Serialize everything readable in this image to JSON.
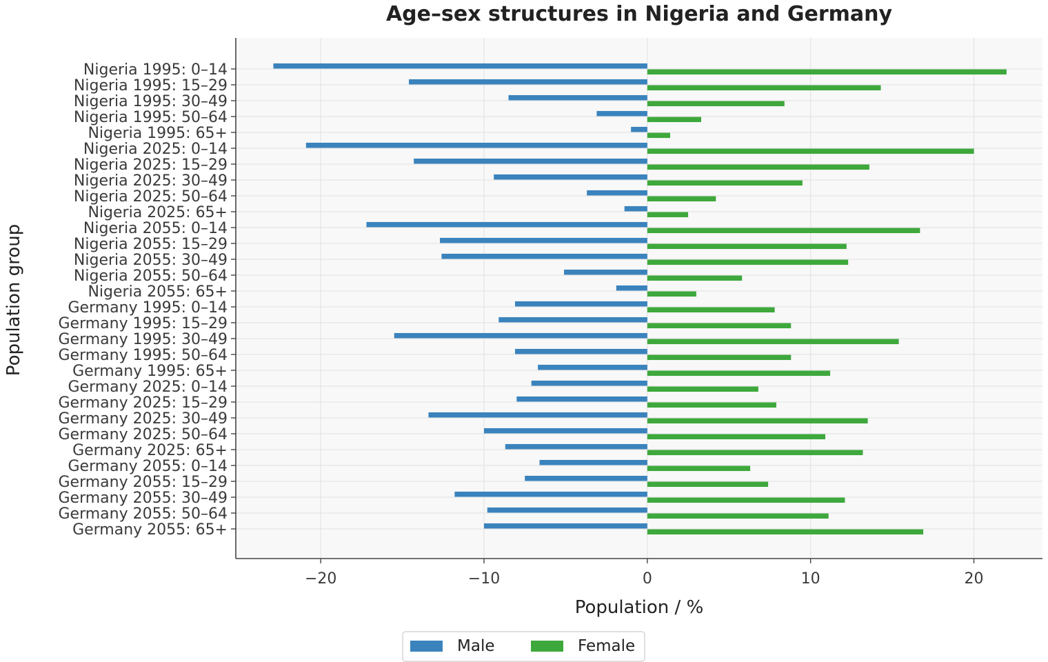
{
  "chart_data": {
    "type": "bar",
    "orientation": "horizontal",
    "title": "Age–sex structures in Nigeria and Germany",
    "xlabel": "Population / %",
    "ylabel": "Population group",
    "xlim": [
      -25.2,
      24.2
    ],
    "xticks": [
      -20,
      -10,
      0,
      10,
      20
    ],
    "xtick_labels": [
      "−20",
      "−10",
      "0",
      "10",
      "20"
    ],
    "grid": true,
    "legend_position": "bottom-center",
    "categories": [
      "Nigeria 1995: 0–14",
      "Nigeria 1995: 15–29",
      "Nigeria 1995: 30–49",
      "Nigeria 1995: 50–64",
      "Nigeria 1995: 65+",
      "Nigeria 2025: 0–14",
      "Nigeria 2025: 15–29",
      "Nigeria 2025: 30–49",
      "Nigeria 2025: 50–64",
      "Nigeria 2025: 65+",
      "Nigeria 2055: 0–14",
      "Nigeria 2055: 15–29",
      "Nigeria 2055: 30–49",
      "Nigeria 2055: 50–64",
      "Nigeria 2055: 65+",
      "Germany 1995: 0–14",
      "Germany 1995: 15–29",
      "Germany 1995: 30–49",
      "Germany 1995: 50–64",
      "Germany 1995: 65+",
      "Germany 2025: 0–14",
      "Germany 2025: 15–29",
      "Germany 2025: 30–49",
      "Germany 2025: 50–64",
      "Germany 2025: 65+",
      "Germany 2055: 0–14",
      "Germany 2055: 15–29",
      "Germany 2055: 30–49",
      "Germany 2055: 50–64",
      "Germany 2055: 65+"
    ],
    "series": [
      {
        "name": "Male",
        "color": "#3a83bd",
        "values": [
          -22.9,
          -14.6,
          -8.5,
          -3.1,
          -1.0,
          -20.9,
          -14.3,
          -9.4,
          -3.7,
          -1.4,
          -17.2,
          -12.7,
          -12.6,
          -5.1,
          -1.9,
          -8.1,
          -9.1,
          -15.5,
          -8.1,
          -6.7,
          -7.1,
          -8.0,
          -13.4,
          -10.0,
          -8.7,
          -6.6,
          -7.5,
          -11.8,
          -9.8,
          -10.0
        ]
      },
      {
        "name": "Female",
        "color": "#3ea83c",
        "values": [
          22.0,
          14.3,
          8.4,
          3.3,
          1.4,
          20.0,
          13.6,
          9.5,
          4.2,
          2.5,
          16.7,
          12.2,
          12.3,
          5.8,
          3.0,
          7.8,
          8.8,
          15.4,
          8.8,
          11.2,
          6.8,
          7.9,
          13.5,
          10.9,
          13.2,
          6.3,
          7.4,
          12.1,
          11.1,
          16.9
        ]
      }
    ]
  },
  "colors": {
    "plot_background": "#f8f8f8",
    "grid": "#e4e4e4",
    "axis": "#444444"
  }
}
